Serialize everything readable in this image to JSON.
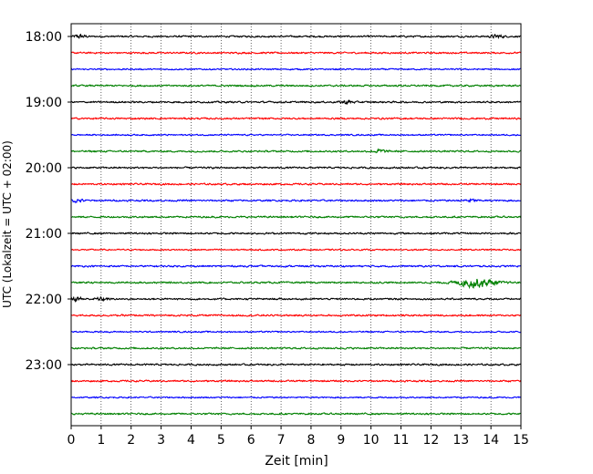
{
  "chart_data": {
    "type": "line",
    "title": "",
    "xlabel": "Zeit  [min]",
    "ylabel": "UTC (Lokalzeit = UTC + 02:00)",
    "xlim": [
      0,
      15
    ],
    "x_ticks": [
      "0",
      "1",
      "2",
      "3",
      "4",
      "5",
      "6",
      "7",
      "8",
      "9",
      "10",
      "11",
      "12",
      "13",
      "14",
      "15"
    ],
    "y_ticks": [
      "18:00",
      "19:00",
      "20:00",
      "21:00",
      "22:00",
      "23:00"
    ],
    "grid": "vertical dotted",
    "trace_interval_min": 15,
    "start_time": "18:00",
    "trace_colors": [
      "#000000",
      "#ff0000",
      "#0000ff",
      "#008000"
    ],
    "traces": [
      {
        "start": "18:00",
        "color": "#000000",
        "amplitude": 0.3,
        "events": [
          {
            "t": 0.3,
            "amp": 0.6
          },
          {
            "t": 14.2,
            "amp": 0.6
          }
        ]
      },
      {
        "start": "18:15",
        "color": "#ff0000",
        "amplitude": 0.3,
        "events": []
      },
      {
        "start": "18:30",
        "color": "#0000ff",
        "amplitude": 0.25,
        "events": []
      },
      {
        "start": "18:45",
        "color": "#008000",
        "amplitude": 0.3,
        "events": []
      },
      {
        "start": "19:00",
        "color": "#000000",
        "amplitude": 0.3,
        "events": [
          {
            "t": 9.2,
            "amp": 0.6
          }
        ]
      },
      {
        "start": "19:15",
        "color": "#ff0000",
        "amplitude": 0.3,
        "events": []
      },
      {
        "start": "19:30",
        "color": "#0000ff",
        "amplitude": 0.25,
        "events": []
      },
      {
        "start": "19:45",
        "color": "#008000",
        "amplitude": 0.3,
        "events": [
          {
            "t": 10.3,
            "amp": 0.6
          }
        ]
      },
      {
        "start": "20:00",
        "color": "#000000",
        "amplitude": 0.3,
        "events": []
      },
      {
        "start": "20:15",
        "color": "#ff0000",
        "amplitude": 0.3,
        "events": []
      },
      {
        "start": "20:30",
        "color": "#0000ff",
        "amplitude": 0.3,
        "events": [
          {
            "t": 0.2,
            "amp": 0.6
          },
          {
            "t": 13.3,
            "amp": 0.5
          }
        ]
      },
      {
        "start": "20:45",
        "color": "#008000",
        "amplitude": 0.3,
        "events": []
      },
      {
        "start": "21:00",
        "color": "#000000",
        "amplitude": 0.3,
        "events": []
      },
      {
        "start": "21:15",
        "color": "#ff0000",
        "amplitude": 0.25,
        "events": []
      },
      {
        "start": "21:30",
        "color": "#0000ff",
        "amplitude": 0.3,
        "events": []
      },
      {
        "start": "21:45",
        "color": "#008000",
        "amplitude": 0.3,
        "events": [
          {
            "t": 13.5,
            "amp": 1.7
          }
        ]
      },
      {
        "start": "22:00",
        "color": "#000000",
        "amplitude": 0.3,
        "events": [
          {
            "t": 0.2,
            "amp": 0.7
          },
          {
            "t": 1.0,
            "amp": 0.6
          }
        ]
      },
      {
        "start": "22:15",
        "color": "#ff0000",
        "amplitude": 0.3,
        "events": []
      },
      {
        "start": "22:30",
        "color": "#0000ff",
        "amplitude": 0.25,
        "events": []
      },
      {
        "start": "22:45",
        "color": "#008000",
        "amplitude": 0.3,
        "events": []
      },
      {
        "start": "23:00",
        "color": "#000000",
        "amplitude": 0.3,
        "events": []
      },
      {
        "start": "23:15",
        "color": "#ff0000",
        "amplitude": 0.3,
        "events": []
      },
      {
        "start": "23:30",
        "color": "#0000ff",
        "amplitude": 0.25,
        "events": []
      },
      {
        "start": "23:45",
        "color": "#008000",
        "amplitude": 0.3,
        "events": []
      }
    ]
  }
}
